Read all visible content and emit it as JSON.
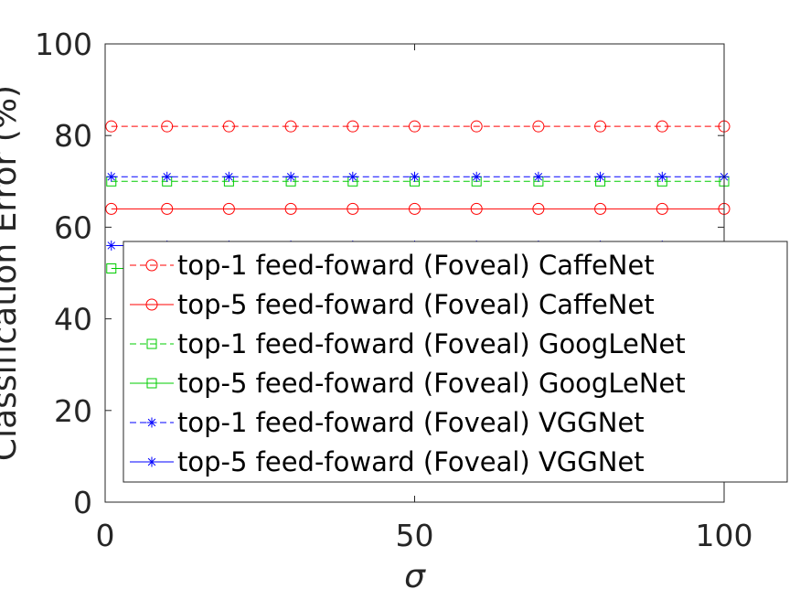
{
  "chart_data": {
    "type": "line",
    "title": "",
    "xlabel": "σ",
    "ylabel": "Classification Error (%)",
    "xlim": [
      0,
      100
    ],
    "ylim": [
      0,
      100
    ],
    "xticks": [
      0,
      50,
      100
    ],
    "xtick_labels": [
      "0",
      "50",
      "100"
    ],
    "yticks": [
      0,
      20,
      40,
      60,
      80,
      100
    ],
    "ytick_labels": [
      "0",
      "20",
      "40",
      "60",
      "80",
      "100"
    ],
    "grid": false,
    "legend_position": "bottom-right",
    "x": [
      1,
      10,
      20,
      30,
      40,
      50,
      60,
      70,
      80,
      90,
      100
    ],
    "series": [
      {
        "name": "top-1 feed-foward (Foveal) CaffeNet",
        "color": "#ff0000",
        "line_style": "dashed",
        "marker": "circle",
        "values": [
          82,
          82,
          82,
          82,
          82,
          82,
          82,
          82,
          82,
          82,
          82
        ]
      },
      {
        "name": "top-5 feed-foward (Foveal) CaffeNet",
        "color": "#ff0000",
        "line_style": "solid",
        "marker": "circle",
        "values": [
          64,
          64,
          64,
          64,
          64,
          64,
          64,
          64,
          64,
          64,
          64
        ]
      },
      {
        "name": "top-1 feed-foward (Foveal) GoogLeNet",
        "color": "#00cc00",
        "line_style": "dashed",
        "marker": "square",
        "values": [
          70,
          70,
          70,
          70,
          70,
          70,
          70,
          70,
          70,
          70,
          70
        ]
      },
      {
        "name": "top-5 feed-foward (Foveal) GoogLeNet",
        "color": "#00cc00",
        "line_style": "solid",
        "marker": "square",
        "values": [
          51,
          51,
          51,
          51,
          51,
          51,
          51,
          51,
          51,
          51,
          51
        ]
      },
      {
        "name": "top-1 feed-foward (Foveal) VGGNet",
        "color": "#0000ff",
        "line_style": "dashed",
        "marker": "asterisk",
        "values": [
          71,
          71,
          71,
          71,
          71,
          71,
          71,
          71,
          71,
          71,
          71
        ]
      },
      {
        "name": "top-5 feed-foward (Foveal) VGGNet",
        "color": "#0000ff",
        "line_style": "solid",
        "marker": "asterisk",
        "values": [
          56,
          56,
          56,
          56,
          56,
          56,
          56,
          56,
          56,
          56,
          56
        ]
      }
    ]
  }
}
